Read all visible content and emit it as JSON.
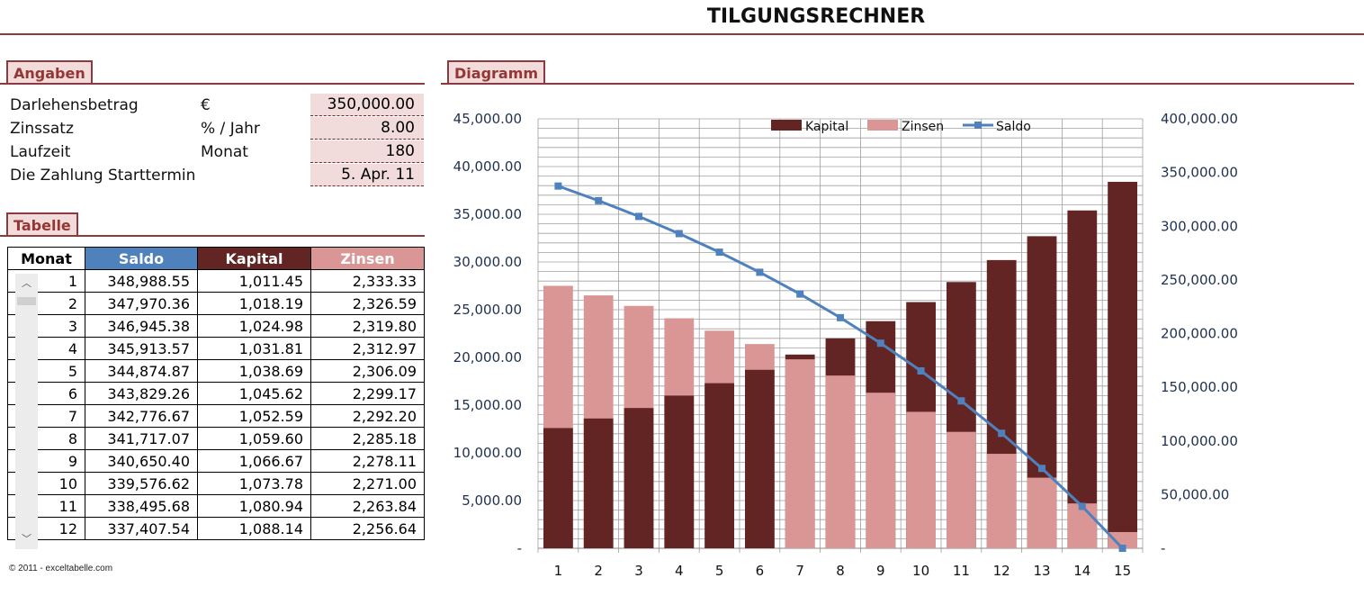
{
  "title": "TILGUNGSRECHNER",
  "angaben": {
    "label": "Angaben",
    "rows": [
      {
        "label": "Darlehensbetrag",
        "unit": "€",
        "value": "350,000.00"
      },
      {
        "label": "Zinssatz",
        "unit": "% / Jahr",
        "value": "8.00"
      },
      {
        "label": "Laufzeit",
        "unit": "Monat",
        "value": "180"
      },
      {
        "label": "Die Zahlung Starttermin",
        "unit": "",
        "value": "5. Apr. 11"
      }
    ]
  },
  "tabelle": {
    "label": "Tabelle",
    "headers": [
      "Monat",
      "Saldo",
      "Kapital",
      "Zinsen"
    ],
    "rows": [
      [
        "1",
        "348,988.55",
        "1,011.45",
        "2,333.33"
      ],
      [
        "2",
        "347,970.36",
        "1,018.19",
        "2,326.59"
      ],
      [
        "3",
        "346,945.38",
        "1,024.98",
        "2,319.80"
      ],
      [
        "4",
        "345,913.57",
        "1,031.81",
        "2,312.97"
      ],
      [
        "5",
        "344,874.87",
        "1,038.69",
        "2,306.09"
      ],
      [
        "6",
        "343,829.26",
        "1,045.62",
        "2,299.17"
      ],
      [
        "7",
        "342,776.67",
        "1,052.59",
        "2,292.20"
      ],
      [
        "8",
        "341,717.07",
        "1,059.60",
        "2,285.18"
      ],
      [
        "9",
        "340,650.40",
        "1,066.67",
        "2,278.11"
      ],
      [
        "10",
        "339,576.62",
        "1,073.78",
        "2,271.00"
      ],
      [
        "11",
        "338,495.68",
        "1,080.94",
        "2,263.84"
      ],
      [
        "12",
        "337,407.54",
        "1,088.14",
        "2,256.64"
      ]
    ]
  },
  "diagramm": {
    "label": "Diagramm"
  },
  "footer": "© 2011 - exceltabelle.com",
  "colors": {
    "accent": "#8c3a3e",
    "saldo": "#4f81bd",
    "kapital": "#632523",
    "zinsen": "#d99694"
  },
  "chart_data": {
    "type": "bar",
    "categories": [
      "1",
      "2",
      "3",
      "4",
      "5",
      "6",
      "7",
      "8",
      "9",
      "10",
      "11",
      "12",
      "13",
      "14",
      "15"
    ],
    "series": [
      {
        "name": "Kapital",
        "axis": "left",
        "values": [
          12600,
          13600,
          14700,
          16000,
          17300,
          18700,
          20300,
          22000,
          23800,
          25800,
          27900,
          30200,
          32700,
          35400,
          38400
        ]
      },
      {
        "name": "Zinsen",
        "axis": "left",
        "values": [
          27500,
          26500,
          25400,
          24100,
          22800,
          21400,
          19800,
          18100,
          16300,
          14300,
          12200,
          9900,
          7400,
          4700,
          1700
        ]
      },
      {
        "name": "Saldo",
        "type": "line",
        "axis": "right",
        "values": [
          337400,
          323800,
          309100,
          293100,
          275800,
          257100,
          236800,
          214800,
          191000,
          165200,
          137300,
          107100,
          74400,
          39000,
          0
        ]
      }
    ],
    "left_ticks": [
      "-",
      "5,000.00",
      "10,000.00",
      "15,000.00",
      "20,000.00",
      "25,000.00",
      "30,000.00",
      "35,000.00",
      "40,000.00",
      "45,000.00"
    ],
    "right_ticks": [
      "-",
      "50,000.00",
      "100,000.00",
      "150,000.00",
      "200,000.00",
      "250,000.00",
      "300,000.00",
      "350,000.00",
      "400,000.00"
    ],
    "ylim_left": [
      0,
      45000
    ],
    "ylim_right": [
      0,
      400000
    ],
    "legend": "top",
    "grid": true
  }
}
